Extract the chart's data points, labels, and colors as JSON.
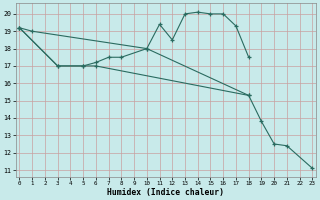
{
  "xlabel": "Humidex (Indice chaleur)",
  "bg_color": "#c8eaea",
  "grid_color": "#c8a0a0",
  "line_color": "#2a6b60",
  "line1_x": [
    0,
    1,
    10,
    11,
    12,
    13,
    14,
    15,
    16,
    17,
    18
  ],
  "line1_y": [
    19.2,
    19.0,
    18.0,
    19.4,
    18.5,
    20.0,
    20.1,
    20.0,
    20.0,
    19.3,
    17.5
  ],
  "line2_x": [
    0,
    3,
    5,
    6,
    7,
    8,
    10,
    18
  ],
  "line2_y": [
    19.2,
    17.0,
    17.0,
    17.2,
    17.5,
    17.5,
    18.0,
    15.3
  ],
  "line3_x": [
    0,
    3,
    5,
    6,
    18,
    19,
    20,
    21,
    23
  ],
  "line3_y": [
    19.2,
    17.0,
    17.0,
    17.0,
    15.3,
    13.8,
    12.5,
    12.4,
    11.1
  ],
  "xlim": [
    -0.3,
    23.3
  ],
  "ylim": [
    10.6,
    20.6
  ],
  "xticks": [
    0,
    1,
    2,
    3,
    4,
    5,
    6,
    7,
    8,
    9,
    10,
    11,
    12,
    13,
    14,
    15,
    16,
    17,
    18,
    19,
    20,
    21,
    22,
    23
  ],
  "yticks": [
    11,
    12,
    13,
    14,
    15,
    16,
    17,
    18,
    19,
    20
  ]
}
